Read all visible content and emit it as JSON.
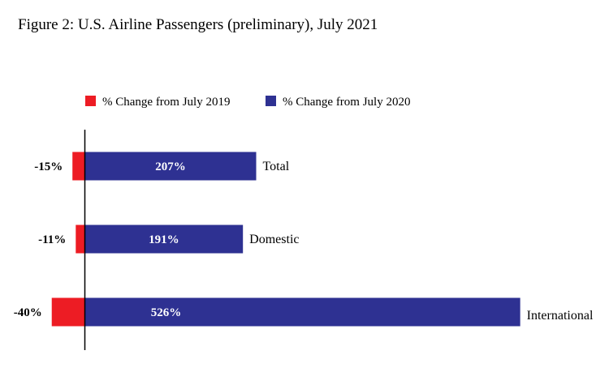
{
  "title": "Figure 2: U.S. Airline Passengers (preliminary), July 2021",
  "chart_data": {
    "type": "bar",
    "orientation": "horizontal",
    "title": "Figure 2: U.S. Airline Passengers (preliminary), July 2021",
    "categories": [
      "Total",
      "Domestic",
      "International"
    ],
    "series": [
      {
        "name": "% Change from July 2019",
        "values": [
          -15,
          -11,
          -40
        ],
        "labels": [
          "-15%",
          "-11%",
          "-40%"
        ],
        "color": "#ed1c24"
      },
      {
        "name": "% Change from July 2020",
        "values": [
          207,
          191,
          526
        ],
        "labels": [
          "207%",
          "191%",
          "526%"
        ],
        "color": "#2e3192"
      }
    ],
    "legend_position": "top",
    "grid": false
  }
}
